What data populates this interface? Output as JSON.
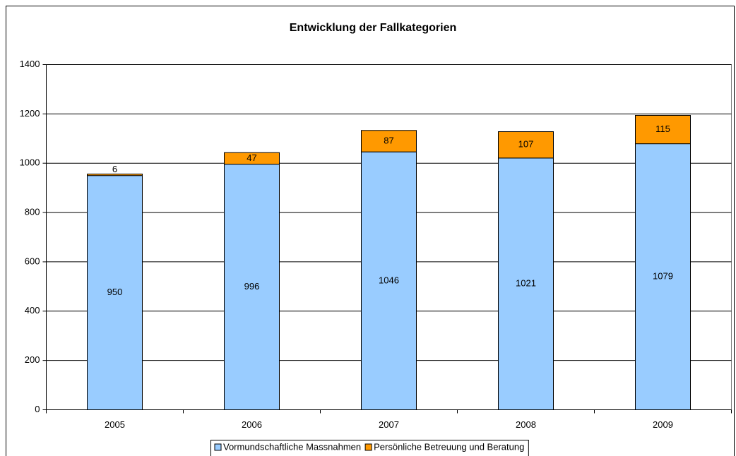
{
  "chart_data": {
    "type": "stacked_bar",
    "title": "Entwicklung der Fallkategorien",
    "categories": [
      "2005",
      "2006",
      "2007",
      "2008",
      "2009"
    ],
    "series": [
      {
        "name": "Vormundschaftliche Massnahmen",
        "color": "#99ccff",
        "values": [
          950,
          996,
          1046,
          1021,
          1079
        ]
      },
      {
        "name": "Persönliche Betreuung und Beratung",
        "color": "#ff9900",
        "values": [
          6,
          47,
          87,
          107,
          115
        ]
      }
    ],
    "ylim": [
      0,
      1400
    ],
    "yticks": [
      0,
      200,
      400,
      600,
      800,
      1000,
      1200,
      1400
    ],
    "grid": true,
    "legend": "bottom"
  }
}
